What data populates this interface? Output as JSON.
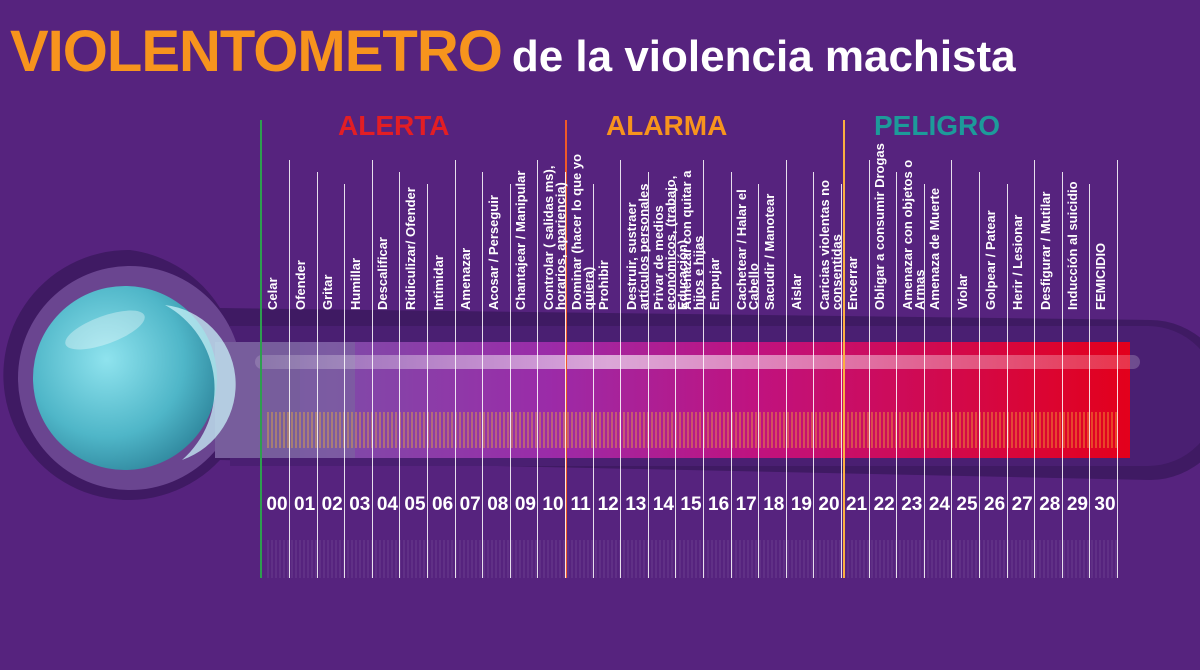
{
  "title": {
    "main": "VIOLENTOMETRO",
    "sub": "de la violencia machista"
  },
  "zones": [
    {
      "id": "alerta",
      "label": "ALERTA",
      "color": "#e31e24"
    },
    {
      "id": "alarma",
      "label": "ALARMA",
      "color": "#f7941d"
    },
    {
      "id": "peligro",
      "label": "PELIGRO",
      "color": "#1d9a9a"
    }
  ],
  "levels": [
    {
      "num": "00",
      "label": "Celar"
    },
    {
      "num": "01",
      "label": "Ofender"
    },
    {
      "num": "02",
      "label": "Gritar"
    },
    {
      "num": "03",
      "label": "Humillar"
    },
    {
      "num": "04",
      "label": "Descalificar"
    },
    {
      "num": "05",
      "label": "Ridiculizar/ Ofender"
    },
    {
      "num": "06",
      "label": "Intimidar"
    },
    {
      "num": "07",
      "label": "Amenazar"
    },
    {
      "num": "08",
      "label": "Acosar / Perseguir"
    },
    {
      "num": "09",
      "label": "Chantajear / Manipular"
    },
    {
      "num": "10",
      "label": "Controlar ( salidas ms), horarios, apariencia)"
    },
    {
      "num": "11",
      "label": "Dominar (hacer lo  que yo quiera)"
    },
    {
      "num": "12",
      "label": "Prohibir"
    },
    {
      "num": "13",
      "label": "Destruir, sustraer artículos personales"
    },
    {
      "num": "14",
      "label": "Privar de medios económicos, (trabajo, Educación)"
    },
    {
      "num": "15",
      "label": "Amenazar con quitar a hijos e hijas"
    },
    {
      "num": "16",
      "label": "Empujar"
    },
    {
      "num": "17",
      "label": "Cachetear / Halar el Cabello"
    },
    {
      "num": "18",
      "label": "Sacudir / Manotear"
    },
    {
      "num": "19",
      "label": "Aislar"
    },
    {
      "num": "20",
      "label": "Caricias violentas no consentidas"
    },
    {
      "num": "21",
      "label": "Encerrar"
    },
    {
      "num": "22",
      "label": "Obligar a consumir Drogas"
    },
    {
      "num": "23",
      "label": "Amenazar con objetos o Armas"
    },
    {
      "num": "24",
      "label": "Amenaza de Muerte"
    },
    {
      "num": "25",
      "label": "Violar"
    },
    {
      "num": "26",
      "label": "Golpear / Patear"
    },
    {
      "num": "27",
      "label": "Herir / Lesionar"
    },
    {
      "num": "28",
      "label": "Desfigurar / Mutilar"
    },
    {
      "num": "29",
      "label": "Inducción al suicidio"
    },
    {
      "num": "30",
      "label": "FEMICIDIO"
    }
  ],
  "colors": {
    "background": "#56237e",
    "bulb": "#5bc6d6",
    "gradient_start": "#7b3fa0",
    "gradient_mid": "#c0127f",
    "gradient_end": "#e3001b",
    "ticks": "#f7b733"
  }
}
